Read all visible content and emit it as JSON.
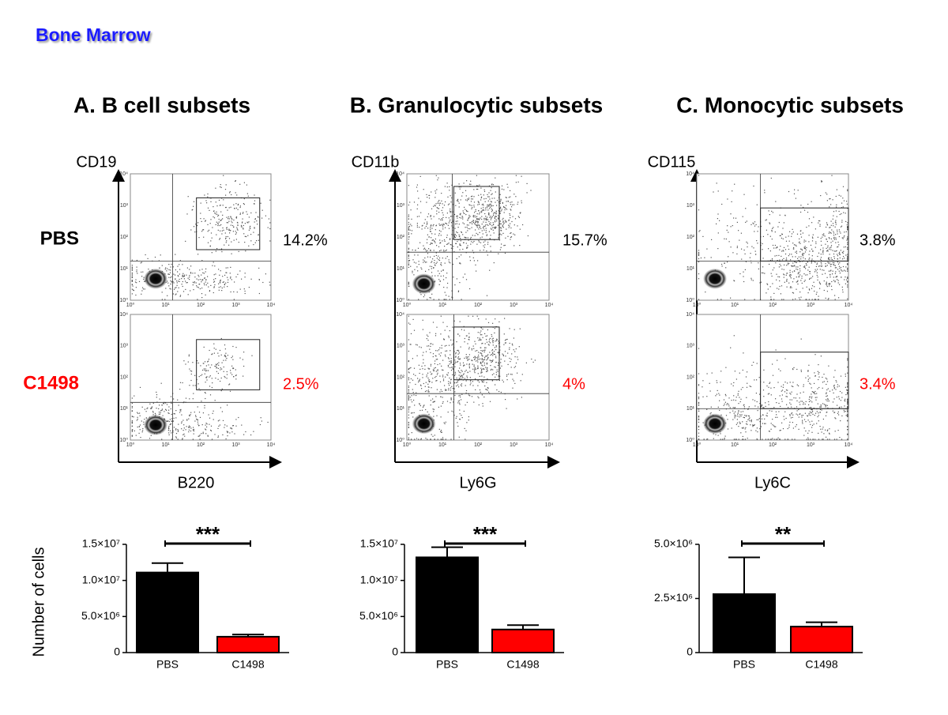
{
  "header": {
    "title": "Bone Marrow"
  },
  "row_labels": [
    "PBS",
    "C1498"
  ],
  "flow_ticks": [
    "10⁰",
    "10¹",
    "10²",
    "10³",
    "10⁴"
  ],
  "panels": [
    {
      "title": "A. B cell subsets",
      "y_marker": "CD19",
      "x_marker": "B220",
      "percentages": [
        "14.2%",
        "2.5%"
      ]
    },
    {
      "title": "B. Granulocytic subsets",
      "y_marker": "CD11b",
      "x_marker": "Ly6G",
      "percentages": [
        "15.7%",
        "4%"
      ]
    },
    {
      "title": "C. Monocytic subsets",
      "y_marker": "CD115",
      "x_marker": "Ly6C",
      "percentages": [
        "3.8%",
        "3.4%"
      ]
    }
  ],
  "chart_data": [
    {
      "type": "bar",
      "y_label": "Number of cells",
      "categories": [
        "PBS",
        "C1498"
      ],
      "values": [
        11100000,
        2200000
      ],
      "errors": [
        1300000,
        300000
      ],
      "colors": [
        "#000000",
        "#ff0000"
      ],
      "ylim": [
        0,
        15000000
      ],
      "yticks": [
        0,
        {
          "value": 5000000,
          "label": "5.0×10⁶"
        },
        {
          "value": 10000000,
          "label": "1.0×10⁷"
        },
        {
          "value": 15000000,
          "label": "1.5×10⁷"
        }
      ],
      "annotation": "***"
    },
    {
      "type": "bar",
      "categories": [
        "PBS",
        "C1498"
      ],
      "values": [
        13200000,
        3200000
      ],
      "errors": [
        1400000,
        600000
      ],
      "colors": [
        "#000000",
        "#ff0000"
      ],
      "ylim": [
        0,
        15000000
      ],
      "yticks": [
        0,
        {
          "value": 5000000,
          "label": "5.0×10⁶"
        },
        {
          "value": 10000000,
          "label": "1.0×10⁷"
        },
        {
          "value": 15000000,
          "label": "1.5×10⁷"
        }
      ],
      "annotation": "***"
    },
    {
      "type": "bar",
      "categories": [
        "PBS",
        "C1498"
      ],
      "values": [
        2700000,
        1200000
      ],
      "errors": [
        1700000,
        200000
      ],
      "colors": [
        "#000000",
        "#ff0000"
      ],
      "ylim": [
        0,
        5000000
      ],
      "yticks": [
        0,
        {
          "value": 2500000,
          "label": "2.5×10⁶"
        },
        {
          "value": 5000000,
          "label": "5.0×10⁶"
        }
      ],
      "annotation": "**"
    }
  ]
}
